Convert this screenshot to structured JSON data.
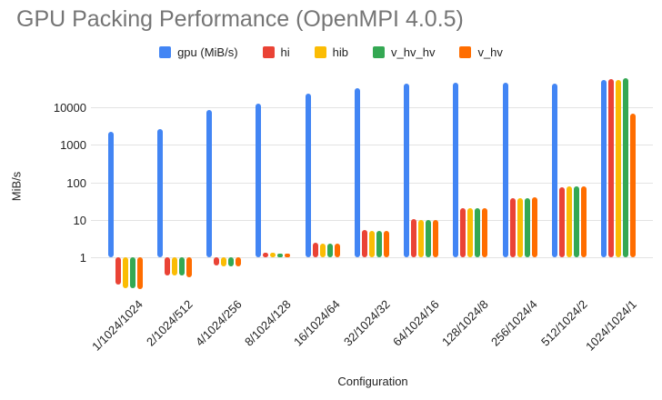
{
  "title": "GPU Packing Performance (OpenMPI 4.0.5)",
  "chart_data": {
    "type": "bar",
    "title": "GPU Packing Performance (OpenMPI 4.0.5)",
    "xlabel": "Configuration",
    "ylabel": "MiB/s",
    "y_scale": "log",
    "y_ticks": [
      10000,
      1000,
      100,
      10,
      1
    ],
    "ylim": [
      0.12,
      60000
    ],
    "baseline": 1,
    "grid": true,
    "legend_position": "top",
    "categories": [
      "1/1024/1024",
      "2/1024/512",
      "4/1024/256",
      "8/1024/128",
      "16/1024/64",
      "32/1024/32",
      "64/1024/16",
      "128/1024/8",
      "256/1024/4",
      "512/1024/2",
      "1024/1024/1"
    ],
    "series": [
      {
        "name": "gpu (MiB/s)",
        "color": "#4285F4",
        "values": [
          2200,
          2600,
          8500,
          13000,
          23000,
          32000,
          43000,
          45000,
          47000,
          43000,
          54000
        ]
      },
      {
        "name": "hi",
        "color": "#EA4335",
        "values": [
          0.19,
          0.33,
          0.6,
          1.35,
          2.4,
          5.3,
          10.5,
          21,
          38,
          75,
          56000
        ]
      },
      {
        "name": "hib",
        "color": "#FBBC04",
        "values": [
          0.15,
          0.33,
          0.58,
          1.3,
          2.3,
          5.2,
          10.0,
          20,
          38,
          80,
          54000
        ]
      },
      {
        "name": "v_hv_hv",
        "color": "#34A853",
        "values": [
          0.15,
          0.32,
          0.58,
          1.28,
          2.3,
          5.2,
          10.0,
          20,
          38,
          77,
          59000
        ]
      },
      {
        "name": "v_hv",
        "color": "#FF6D00",
        "values": [
          0.14,
          0.3,
          0.56,
          1.25,
          2.3,
          5.2,
          10.0,
          20,
          39,
          79,
          6800
        ]
      }
    ]
  }
}
